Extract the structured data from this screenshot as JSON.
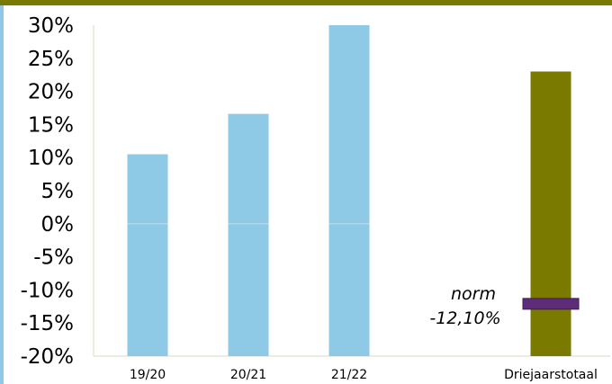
{
  "chart_data": {
    "type": "bar",
    "categories": [
      "19/20",
      "20/21",
      "21/22",
      "Driejaarstotaal"
    ],
    "values": [
      10.5,
      16.6,
      30.0,
      23.0
    ],
    "bar_colors": [
      "#8ecae6",
      "#8ecae6",
      "#8ecae6",
      "#7a7a00"
    ],
    "ylim": [
      -20,
      30
    ],
    "yticks": [
      30,
      25,
      20,
      15,
      10,
      5,
      0,
      -5,
      -10,
      -15,
      -20
    ],
    "ytick_labels": [
      "30%",
      "25%",
      "20%",
      "15%",
      "10%",
      "5%",
      "0%",
      "-5%",
      "-10%",
      "-15%",
      "-20%"
    ],
    "title": "",
    "xlabel": "",
    "ylabel": "",
    "grid": false,
    "norm": {
      "value": -12.1,
      "category": "Driejaarstotaal",
      "label_line1": "norm",
      "label_line2": "-12,10%",
      "color": "#5e2d79"
    }
  },
  "colors": {
    "top_band": "#7a7a00",
    "left_band": "#8ec8e6",
    "axis": "#d9d9c0"
  }
}
